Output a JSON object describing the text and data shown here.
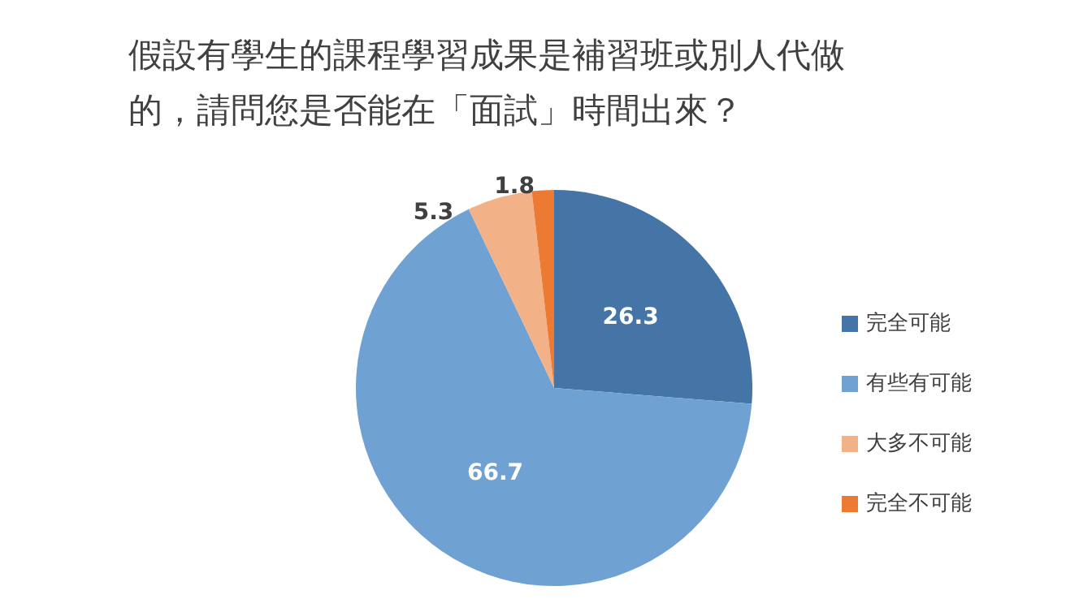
{
  "chart_data": {
    "type": "pie",
    "title": "假設有學生的課程學習成果是補習班或別人代做的，請問您是否能在「面試」時間出來？",
    "categories": [
      "完全可能",
      "有些有可能",
      "大多不可能",
      "完全不可能"
    ],
    "values": [
      26.3,
      66.7,
      5.3,
      1.8
    ],
    "colors": [
      "#4574a6",
      "#6fa2d3",
      "#f3b187",
      "#ec7a32"
    ],
    "data_labels": true,
    "legend": "right"
  }
}
